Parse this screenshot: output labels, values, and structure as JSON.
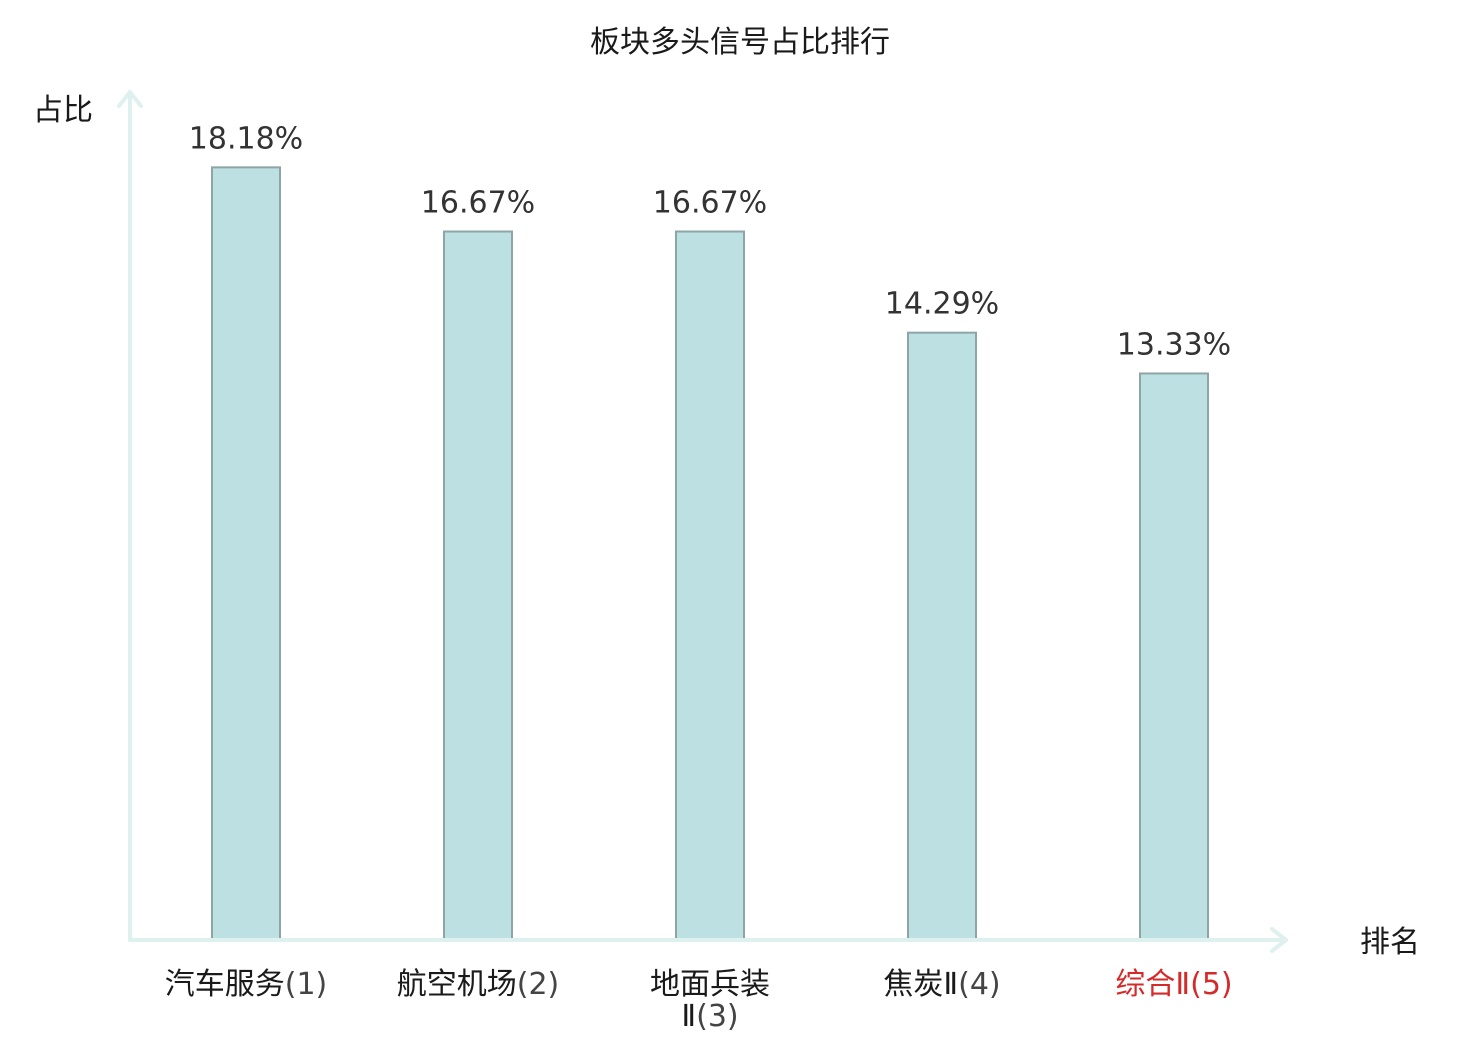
{
  "chart_data": {
    "type": "bar",
    "title": "板块多头信号占比排行",
    "ylabel": "占比",
    "xlabel": "排名",
    "ylim": [
      0,
      20
    ],
    "grid": false,
    "categories": [
      {
        "name_lines": [
          "汽车服务"
        ],
        "rank": "(1)",
        "highlight": false
      },
      {
        "name_lines": [
          "航空机场"
        ],
        "rank": "(2)",
        "highlight": false
      },
      {
        "name_lines": [
          "地面兵装",
          "Ⅱ"
        ],
        "rank": "(3)",
        "highlight": false
      },
      {
        "name_lines": [
          "焦炭Ⅱ"
        ],
        "rank": "(4)",
        "highlight": false
      },
      {
        "name_lines": [
          "综合Ⅱ"
        ],
        "rank": "(5)",
        "highlight": true
      }
    ],
    "values": [
      18.18,
      16.67,
      16.67,
      14.29,
      13.33
    ],
    "value_labels": [
      "18.18%",
      "16.67%",
      "16.67%",
      "14.29%",
      "13.33%"
    ],
    "colors": {
      "bar_fill": "#bde1e2",
      "bar_stroke": "#8ea5a5",
      "axis": "#dff1ee",
      "highlight_text": "#d42a2a"
    }
  }
}
